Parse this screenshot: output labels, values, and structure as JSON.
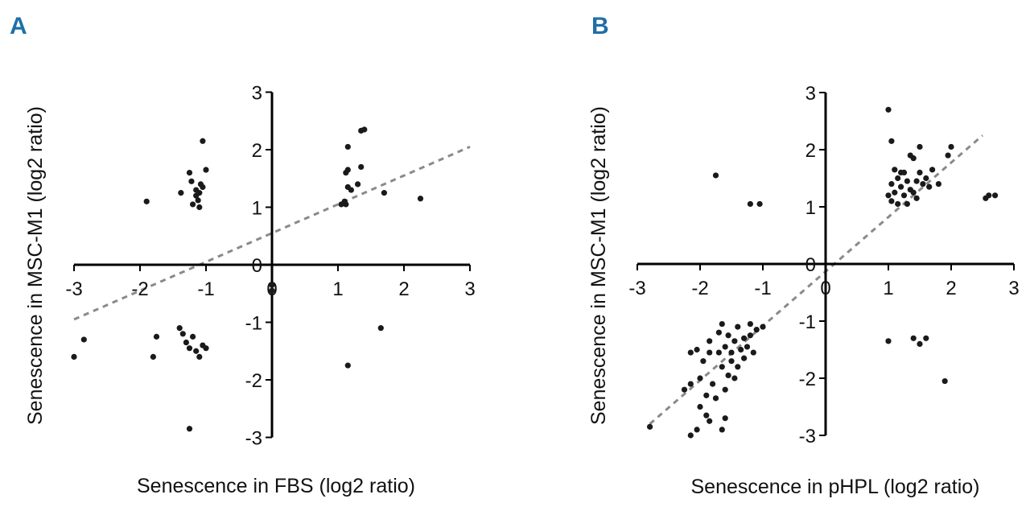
{
  "chart_data": [
    {
      "type": "scatter",
      "panel_label": "A",
      "title": "",
      "xlabel": "Senescence in FBS (log2 ratio)",
      "ylabel": "Senescence in MSC-M1 (log2 ratio)",
      "xlim": [
        -3,
        3
      ],
      "ylim": [
        -3,
        3
      ],
      "xticks": [
        "-3",
        "-2",
        "-1",
        "0",
        "1",
        "2",
        "3"
      ],
      "yticks": [
        "-3",
        "-2",
        "-1",
        "0",
        "1",
        "2",
        "3"
      ],
      "trendline": {
        "x": [
          -3,
          3
        ],
        "y": [
          -0.95,
          2.05
        ]
      },
      "points": [
        [
          -1.05,
          2.15
        ],
        [
          -1.25,
          1.6
        ],
        [
          -1.0,
          1.65
        ],
        [
          -1.38,
          1.25
        ],
        [
          -1.15,
          1.3
        ],
        [
          -1.22,
          1.45
        ],
        [
          -1.1,
          1.25
        ],
        [
          -1.05,
          1.35
        ],
        [
          -1.15,
          1.2
        ],
        [
          -1.2,
          1.05
        ],
        [
          -1.1,
          1.0
        ],
        [
          -1.9,
          1.1
        ],
        [
          -1.12,
          1.12
        ],
        [
          -1.08,
          1.4
        ],
        [
          1.15,
          2.05
        ],
        [
          1.4,
          2.35
        ],
        [
          1.35,
          2.33
        ],
        [
          1.15,
          1.65
        ],
        [
          1.12,
          1.6
        ],
        [
          1.35,
          1.7
        ],
        [
          1.2,
          1.3
        ],
        [
          1.15,
          1.35
        ],
        [
          1.1,
          1.1
        ],
        [
          1.05,
          1.05
        ],
        [
          1.12,
          1.05
        ],
        [
          1.3,
          1.4
        ],
        [
          1.7,
          1.25
        ],
        [
          2.25,
          1.15
        ],
        [
          -3.0,
          -1.6
        ],
        [
          -2.85,
          -1.3
        ],
        [
          -1.8,
          -1.6
        ],
        [
          -1.75,
          -1.25
        ],
        [
          -1.4,
          -1.1
        ],
        [
          -1.35,
          -1.2
        ],
        [
          -1.3,
          -1.35
        ],
        [
          -1.25,
          -1.45
        ],
        [
          -1.15,
          -1.5
        ],
        [
          -1.1,
          -1.6
        ],
        [
          -1.05,
          -1.4
        ],
        [
          -1.0,
          -1.45
        ],
        [
          -1.2,
          -1.25
        ],
        [
          -1.25,
          -2.85
        ],
        [
          0.0,
          -0.35
        ],
        [
          0.0,
          -0.45
        ],
        [
          1.65,
          -1.1
        ],
        [
          1.15,
          -1.75
        ]
      ]
    },
    {
      "type": "scatter",
      "panel_label": "B",
      "title": "",
      "xlabel": "Senescence in pHPL (log2 ratio)",
      "ylabel": "Senescence in MSC-M1 (log2 ratio)",
      "xlim": [
        -3,
        3
      ],
      "ylim": [
        -3,
        3
      ],
      "xticks": [
        "-3",
        "-2",
        "-1",
        "0",
        "1",
        "2",
        "3"
      ],
      "yticks": [
        "-3",
        "-2",
        "-1",
        "0",
        "1",
        "2",
        "3"
      ],
      "trendline": {
        "x": [
          -2.8,
          2.5
        ],
        "y": [
          -2.8,
          2.25
        ]
      },
      "points": [
        [
          1.0,
          2.7
        ],
        [
          1.05,
          2.15
        ],
        [
          1.5,
          2.05
        ],
        [
          2.0,
          2.05
        ],
        [
          1.35,
          1.9
        ],
        [
          1.4,
          1.85
        ],
        [
          1.95,
          1.9
        ],
        [
          1.1,
          1.65
        ],
        [
          1.25,
          1.6
        ],
        [
          1.5,
          1.6
        ],
        [
          1.7,
          1.65
        ],
        [
          1.15,
          1.5
        ],
        [
          1.3,
          1.45
        ],
        [
          1.45,
          1.45
        ],
        [
          1.6,
          1.5
        ],
        [
          1.05,
          1.4
        ],
        [
          1.2,
          1.35
        ],
        [
          1.35,
          1.3
        ],
        [
          1.55,
          1.4
        ],
        [
          1.8,
          1.4
        ],
        [
          1.1,
          1.25
        ],
        [
          1.25,
          1.2
        ],
        [
          1.4,
          1.25
        ],
        [
          1.05,
          1.1
        ],
        [
          1.15,
          1.05
        ],
        [
          1.3,
          1.05
        ],
        [
          1.0,
          1.2
        ],
        [
          1.2,
          1.6
        ],
        [
          1.65,
          1.35
        ],
        [
          1.45,
          1.15
        ],
        [
          2.6,
          1.2
        ],
        [
          2.7,
          1.2
        ],
        [
          2.55,
          1.15
        ],
        [
          -1.75,
          1.55
        ],
        [
          -1.2,
          1.05
        ],
        [
          -1.05,
          1.05
        ],
        [
          1.0,
          -1.35
        ],
        [
          1.4,
          -1.3
        ],
        [
          1.6,
          -1.3
        ],
        [
          1.5,
          -1.4
        ],
        [
          1.9,
          -2.05
        ],
        [
          -2.8,
          -2.85
        ],
        [
          -2.15,
          -3.0
        ],
        [
          -2.05,
          -2.9
        ],
        [
          -1.85,
          -2.75
        ],
        [
          -1.9,
          -2.65
        ],
        [
          -1.65,
          -2.9
        ],
        [
          -1.6,
          -2.7
        ],
        [
          -2.0,
          -2.5
        ],
        [
          -1.9,
          -2.3
        ],
        [
          -1.75,
          -2.35
        ],
        [
          -2.25,
          -2.2
        ],
        [
          -2.15,
          -2.1
        ],
        [
          -2.0,
          -2.0
        ],
        [
          -1.8,
          -2.1
        ],
        [
          -1.6,
          -2.2
        ],
        [
          -1.55,
          -1.95
        ],
        [
          -1.45,
          -2.0
        ],
        [
          -1.4,
          -1.8
        ],
        [
          -1.5,
          -1.7
        ],
        [
          -1.65,
          -1.8
        ],
        [
          -1.95,
          -1.7
        ],
        [
          -1.85,
          -1.55
        ],
        [
          -1.7,
          -1.55
        ],
        [
          -1.6,
          -1.45
        ],
        [
          -1.5,
          -1.55
        ],
        [
          -1.35,
          -1.5
        ],
        [
          -1.25,
          -1.45
        ],
        [
          -1.45,
          -1.35
        ],
        [
          -1.3,
          -1.3
        ],
        [
          -1.2,
          -1.25
        ],
        [
          -1.55,
          -1.25
        ],
        [
          -1.7,
          -1.2
        ],
        [
          -1.1,
          -1.15
        ],
        [
          -1.0,
          -1.1
        ],
        [
          -1.2,
          -1.05
        ],
        [
          -1.4,
          -1.1
        ],
        [
          -1.65,
          -1.05
        ],
        [
          -1.3,
          -1.65
        ],
        [
          -1.15,
          -1.55
        ],
        [
          -2.15,
          -1.55
        ],
        [
          -2.05,
          -1.5
        ],
        [
          -1.85,
          -1.35
        ]
      ]
    }
  ]
}
